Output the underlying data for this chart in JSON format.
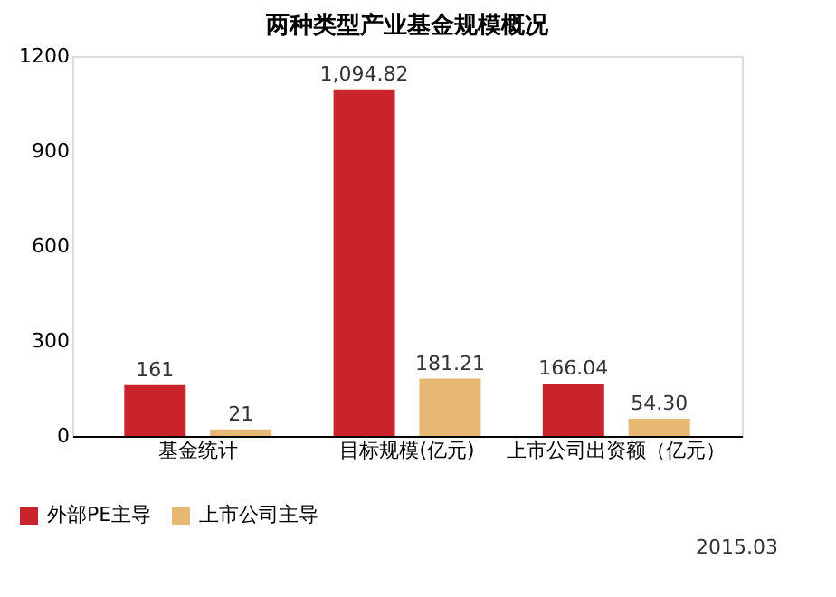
{
  "chart_data": {
    "type": "bar",
    "title": "两种类型产业基金规模概况",
    "categories": [
      "基金统计",
      "目标规模(亿元)",
      "上市公司出资额（亿元）"
    ],
    "series": [
      {
        "name": "外部PE主导",
        "color": "#c9242b",
        "values": [
          161,
          1094.82,
          166.04
        ],
        "value_labels": [
          "161",
          "1,094.82",
          "166.04"
        ]
      },
      {
        "name": "上市公司主导",
        "color": "#e6b873",
        "values": [
          21,
          181.21,
          54.3
        ],
        "value_labels": [
          "21",
          "181.21",
          "54.30"
        ]
      }
    ],
    "ylim": [
      0,
      1200
    ],
    "yticks": [
      0,
      300,
      600,
      900,
      1200
    ],
    "grid": false,
    "legend": "bottom left",
    "annotations": [
      "2015.03"
    ]
  }
}
